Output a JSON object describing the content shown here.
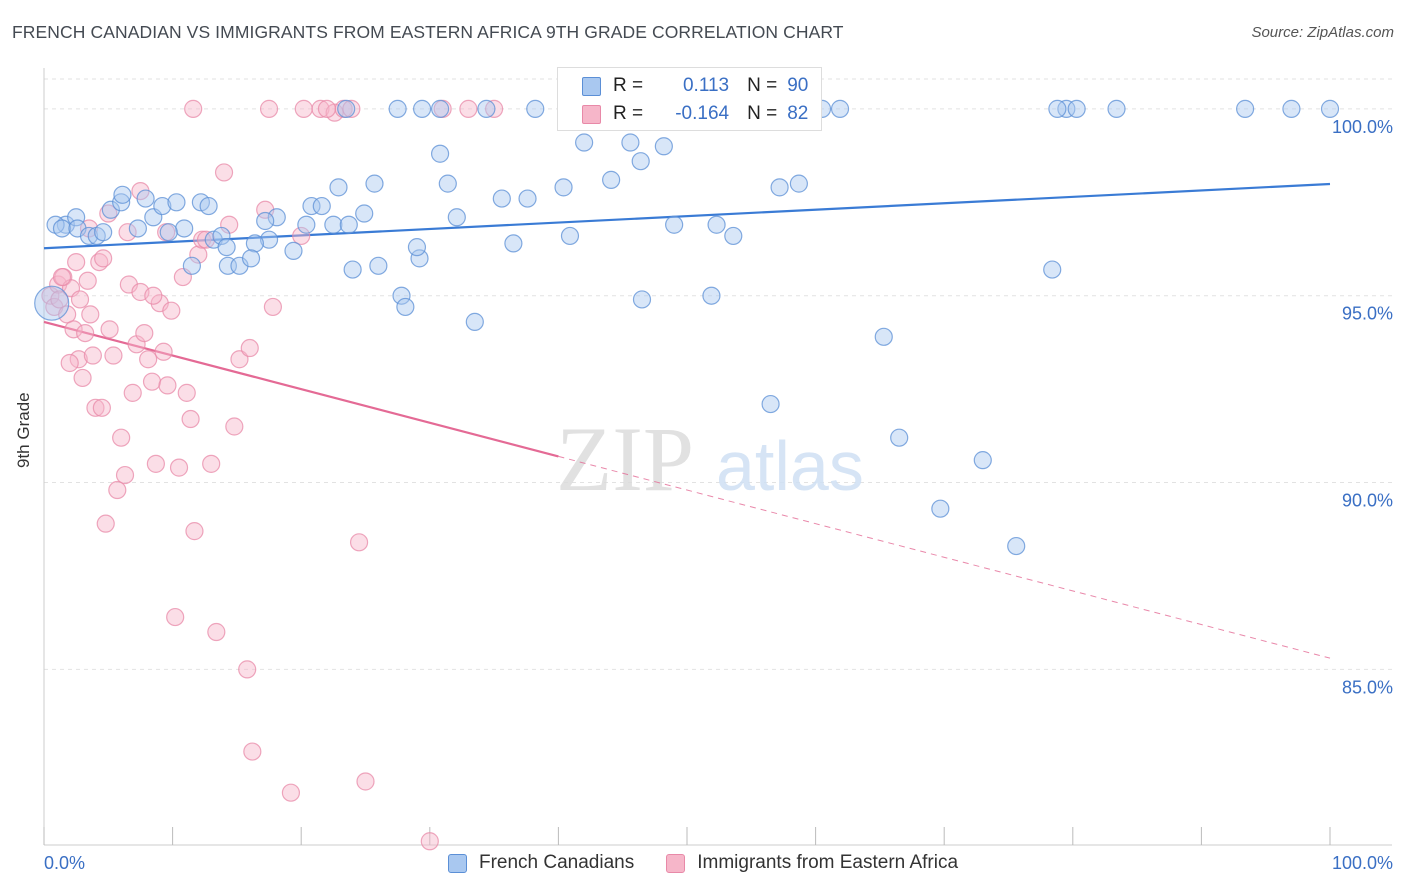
{
  "title": "FRENCH CANADIAN VS IMMIGRANTS FROM EASTERN AFRICA 9TH GRADE CORRELATION CHART",
  "source": "Source: ZipAtlas.com",
  "watermark": {
    "zip": "ZIP",
    "atlas": "atlas"
  },
  "legend_stats": [
    {
      "r_label": "R =",
      "r_value": "0.113",
      "n_label": "N =",
      "n_value": "90"
    },
    {
      "r_label": "R =",
      "r_value": "-0.164",
      "n_label": "N =",
      "n_value": "82"
    }
  ],
  "colors": {
    "blue_fill": "#a9c8f0",
    "blue_stroke": "#5b8fd6",
    "blue_line": "#3a7bd5",
    "pink_fill": "#f6b6c9",
    "pink_stroke": "#e889a8",
    "pink_line": "#e46a95",
    "axis_text": "#3a6fc4",
    "grid": "#e2e2e2"
  },
  "chart_data": {
    "type": "scatter",
    "title": "FRENCH CANADIAN VS IMMIGRANTS FROM EASTERN AFRICA 9TH GRADE CORRELATION CHART",
    "xlabel": "",
    "ylabel": "9th Grade",
    "xlim": [
      0,
      100
    ],
    "ylim": [
      80.3,
      100.8
    ],
    "x_tick_labels": [
      "0.0%",
      "100.0%"
    ],
    "y_ticks": [
      85,
      90,
      95,
      100
    ],
    "y_tick_labels": [
      "85.0%",
      "90.0%",
      "95.0%",
      "100.0%"
    ],
    "grid": true,
    "legend": "bottom-center",
    "series": [
      {
        "name": "French Canadians",
        "r": 0.113,
        "n": 90,
        "trend": {
          "x": [
            0,
            100
          ],
          "y": [
            96.27,
            97.99
          ],
          "solid_until": 100
        },
        "x": [
          1.7,
          2.5,
          0.9,
          1.4,
          2.6,
          3.5,
          4.1,
          5.2,
          6.0,
          6.1,
          4.6,
          7.3,
          7.9,
          8.5,
          10.9,
          9.7,
          12.2,
          9.2,
          10.3,
          11.5,
          13.2,
          14.3,
          13.8,
          15.2,
          12.8,
          14.2,
          17.5,
          18.1,
          16.4,
          17.2,
          19.4,
          20.8,
          20.4,
          22.5,
          21.6,
          23.7,
          24.0,
          24.9,
          22.9,
          25.7,
          26.0,
          27.8,
          29.2,
          29.0,
          28.1,
          30.8,
          31.4,
          32.1,
          35.6,
          36.5,
          33.5,
          37.6,
          40.4,
          44.1,
          42.0,
          40.9,
          45.6,
          46.4,
          48.2,
          49.0,
          46.5,
          51.9,
          52.3,
          53.6,
          57.2,
          58.7,
          56.5,
          65.3,
          66.5,
          69.7,
          73.0,
          75.6,
          78.4,
          79.5,
          80.3,
          83.4,
          93.4,
          97.0,
          60.5,
          61.9,
          78.8,
          45.4,
          38.2,
          34.4,
          23.5,
          27.5,
          29.4,
          30.8,
          100.0,
          16.1
        ],
        "y": [
          96.9,
          97.1,
          96.9,
          96.8,
          96.8,
          96.6,
          96.6,
          97.3,
          97.5,
          97.7,
          96.7,
          96.8,
          97.6,
          97.1,
          96.8,
          96.7,
          97.5,
          97.4,
          97.5,
          95.8,
          96.5,
          95.8,
          96.6,
          95.8,
          97.4,
          96.3,
          96.5,
          97.1,
          96.4,
          97.0,
          96.2,
          97.4,
          96.9,
          96.9,
          97.4,
          96.9,
          95.7,
          97.2,
          97.9,
          98.0,
          95.8,
          95.0,
          96.0,
          96.3,
          94.7,
          98.8,
          98.0,
          97.1,
          97.6,
          96.4,
          94.3,
          97.6,
          97.9,
          98.1,
          99.1,
          96.6,
          99.1,
          98.6,
          99.0,
          96.9,
          94.9,
          95.0,
          96.9,
          96.6,
          97.9,
          98.0,
          92.1,
          93.9,
          91.2,
          89.3,
          90.6,
          88.3,
          95.7,
          100.0,
          100.0,
          100.0,
          100.0,
          100.0,
          100.0,
          100.0,
          100.0,
          100.0,
          100.0,
          100.0,
          100.0,
          100.0,
          100.0,
          100.0,
          100.0,
          96.0
        ],
        "big_point": {
          "x": 0.6,
          "y": 94.8
        }
      },
      {
        "name": "Immigrants from Eastern Africa",
        "r": -0.164,
        "n": 82,
        "trend": {
          "x": [
            0,
            100
          ],
          "y": [
            94.3,
            85.3
          ],
          "solid_until": 40
        },
        "x": [
          0.5,
          0.8,
          1.1,
          1.2,
          1.5,
          1.8,
          2.1,
          2.3,
          2.5,
          2.7,
          3.0,
          3.2,
          3.4,
          3.6,
          3.8,
          4.0,
          4.3,
          4.6,
          4.8,
          5.1,
          5.4,
          5.7,
          6.0,
          6.3,
          6.6,
          6.9,
          7.2,
          7.5,
          7.8,
          8.1,
          8.4,
          8.7,
          9.0,
          9.3,
          9.6,
          9.9,
          10.2,
          10.5,
          10.8,
          11.1,
          11.4,
          11.7,
          12.0,
          12.3,
          12.6,
          13.0,
          13.4,
          14.0,
          14.4,
          14.8,
          15.2,
          15.8,
          16.2,
          17.2,
          17.8,
          19.2,
          20.2,
          21.5,
          22.6,
          23.3,
          23.9,
          24.5,
          25.0,
          30.0,
          31.0,
          1.4,
          2.0,
          3.5,
          5.0,
          6.5,
          7.5,
          8.5,
          9.5,
          16.0,
          11.6,
          17.5,
          22.0,
          33.0,
          35.0,
          20.0,
          4.5,
          2.8
        ],
        "y": [
          95.0,
          94.7,
          95.3,
          94.9,
          95.5,
          94.5,
          95.2,
          94.1,
          95.9,
          93.3,
          92.8,
          94.0,
          95.4,
          94.5,
          93.4,
          92.0,
          95.9,
          96.0,
          88.9,
          94.1,
          93.4,
          89.8,
          91.2,
          90.2,
          95.3,
          92.4,
          93.7,
          95.1,
          94.0,
          93.3,
          92.7,
          90.5,
          94.8,
          93.5,
          92.6,
          94.6,
          86.4,
          90.4,
          95.5,
          92.4,
          91.7,
          88.7,
          96.1,
          96.5,
          96.5,
          90.5,
          86.0,
          98.3,
          96.9,
          91.5,
          93.3,
          85.0,
          82.8,
          97.3,
          94.7,
          81.7,
          100.0,
          100.0,
          99.9,
          100.0,
          100.0,
          88.4,
          82.0,
          80.4,
          100.0,
          95.5,
          93.2,
          96.8,
          97.2,
          96.7,
          97.8,
          95.0,
          96.7,
          93.6,
          100.0,
          100.0,
          100.0,
          100.0,
          100.0,
          96.6,
          92.0,
          94.9
        ]
      }
    ]
  },
  "bottom_legend": [
    {
      "label": "French Canadians"
    },
    {
      "label": "Immigrants from Eastern Africa"
    }
  ]
}
